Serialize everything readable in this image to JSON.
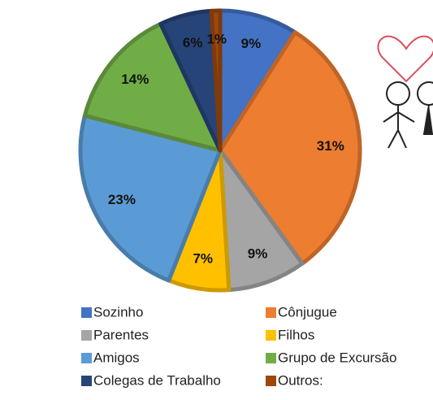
{
  "chart_data": {
    "type": "pie",
    "categories": [
      "Sozinho",
      "Cônjugue",
      "Parentes",
      "Filhos",
      "Amigos",
      "Grupo de Excursão",
      "Colegas de Trabalho",
      "Outros:"
    ],
    "values": [
      9,
      31,
      9,
      7,
      23,
      14,
      6,
      1
    ],
    "value_labels": [
      "9%",
      "31%",
      "9%",
      "7%",
      "23%",
      "14%",
      "6%",
      "1%"
    ],
    "colors": [
      "#4472c4",
      "#ed7d31",
      "#a5a5a5",
      "#ffc000",
      "#5b9bd5",
      "#70ad47",
      "#264478",
      "#9e480e"
    ]
  }
}
